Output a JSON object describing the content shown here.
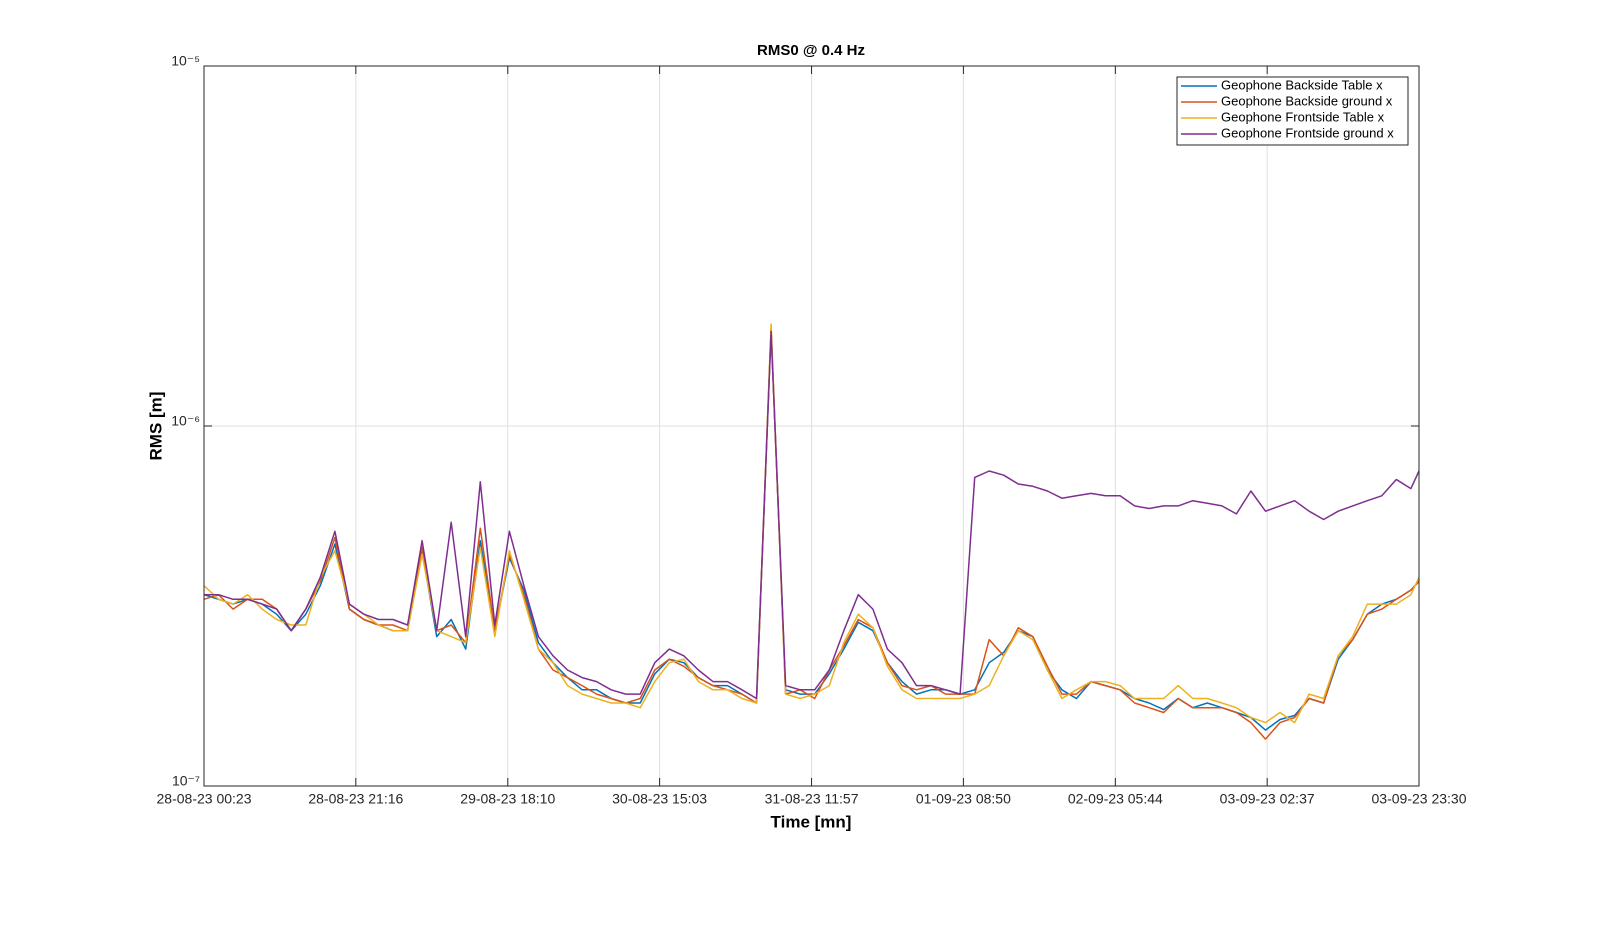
{
  "chart_data": {
    "type": "line",
    "title": "RMS0 @ 0.4 Hz",
    "xlabel": "Time [mn]",
    "ylabel": "RMS [m]",
    "yscale": "log",
    "grid": true,
    "legend": "upper right",
    "x": [
      "2023-08-28T00:23",
      "2023-08-28T02:23",
      "2023-08-28T04:23",
      "2023-08-28T06:23",
      "2023-08-28T08:23",
      "2023-08-28T10:23",
      "2023-08-28T12:23",
      "2023-08-28T14:23",
      "2023-08-28T16:23",
      "2023-08-28T18:23",
      "2023-08-28T20:23",
      "2023-08-28T22:23",
      "2023-08-29T00:23",
      "2023-08-29T02:23",
      "2023-08-29T04:23",
      "2023-08-29T06:23",
      "2023-08-29T08:23",
      "2023-08-29T10:23",
      "2023-08-29T12:23",
      "2023-08-29T14:23",
      "2023-08-29T16:23",
      "2023-08-29T18:23",
      "2023-08-29T20:23",
      "2023-08-29T22:23",
      "2023-08-30T00:23",
      "2023-08-30T02:23",
      "2023-08-30T04:23",
      "2023-08-30T06:23",
      "2023-08-30T08:23",
      "2023-08-30T10:23",
      "2023-08-30T12:23",
      "2023-08-30T14:23",
      "2023-08-30T16:23",
      "2023-08-30T18:23",
      "2023-08-30T20:23",
      "2023-08-30T22:23",
      "2023-08-31T00:23",
      "2023-08-31T02:23",
      "2023-08-31T04:23",
      "2023-08-31T06:23",
      "2023-08-31T08:23",
      "2023-08-31T10:23",
      "2023-08-31T12:23",
      "2023-08-31T14:23",
      "2023-08-31T16:23",
      "2023-08-31T18:23",
      "2023-08-31T20:23",
      "2023-08-31T22:23",
      "2023-09-01T00:23",
      "2023-09-01T02:23",
      "2023-09-01T04:23",
      "2023-09-01T06:23",
      "2023-09-01T08:23",
      "2023-09-01T10:23",
      "2023-09-01T12:23",
      "2023-09-01T14:23",
      "2023-09-01T16:23",
      "2023-09-01T18:23",
      "2023-09-01T20:23",
      "2023-09-01T22:23",
      "2023-09-02T00:23",
      "2023-09-02T02:23",
      "2023-09-02T04:23",
      "2023-09-02T06:23",
      "2023-09-02T08:23",
      "2023-09-02T10:23",
      "2023-09-02T12:23",
      "2023-09-02T14:23",
      "2023-09-02T16:23",
      "2023-09-02T18:23",
      "2023-09-02T20:23",
      "2023-09-02T22:23",
      "2023-09-03T00:23",
      "2023-09-03T02:23",
      "2023-09-03T04:23",
      "2023-09-03T06:23",
      "2023-09-03T08:23",
      "2023-09-03T10:23",
      "2023-09-03T12:23",
      "2023-09-03T14:23",
      "2023-09-03T16:23",
      "2023-09-03T18:23",
      "2023-09-03T20:23",
      "2023-09-03T22:23",
      "2023-09-03T23:30"
    ],
    "xlim": [
      "2023-08-28T00:23",
      "2023-09-03T23:30"
    ],
    "xticks": [
      {
        "value": "2023-08-28T00:23",
        "label": "28-08-23 00:23"
      },
      {
        "value": "2023-08-28T21:16",
        "label": "28-08-23 21:16"
      },
      {
        "value": "2023-08-29T18:10",
        "label": "29-08-23 18:10"
      },
      {
        "value": "2023-08-30T15:03",
        "label": "30-08-23 15:03"
      },
      {
        "value": "2023-08-31T11:57",
        "label": "31-08-23 11:57"
      },
      {
        "value": "2023-09-01T08:50",
        "label": "01-09-23 08:50"
      },
      {
        "value": "2023-09-02T05:44",
        "label": "02-09-23 05:44"
      },
      {
        "value": "2023-09-03T02:37",
        "label": "03-09-23 02:37"
      },
      {
        "value": "2023-09-03T23:30",
        "label": "03-09-23 23:30"
      }
    ],
    "ylim": [
      1e-07,
      1e-05
    ],
    "yticks": [
      {
        "value": 1e-07,
        "label": "10⁻⁷"
      },
      {
        "value": 1e-06,
        "label": "10⁻⁶"
      },
      {
        "value": 1e-05,
        "label": "10⁻⁵"
      }
    ],
    "series": [
      {
        "name": "Geophone Backside Table x",
        "color": "#0072bd",
        "values": [
          3.4e-07,
          3.3e-07,
          3.2e-07,
          3.3e-07,
          3.2e-07,
          3e-07,
          2.7e-07,
          3e-07,
          3.6e-07,
          4.7e-07,
          3.1e-07,
          2.9e-07,
          2.8e-07,
          2.7e-07,
          2.7e-07,
          4.5e-07,
          2.6e-07,
          2.9e-07,
          2.4e-07,
          4.8e-07,
          2.7e-07,
          4.3e-07,
          3.5e-07,
          2.5e-07,
          2.2e-07,
          2e-07,
          1.85e-07,
          1.85e-07,
          1.75e-07,
          1.7e-07,
          1.7e-07,
          2.05e-07,
          2.25e-07,
          2.2e-07,
          2e-07,
          1.9e-07,
          1.9e-07,
          1.8e-07,
          1.7e-07,
          1.85e-06,
          1.85e-07,
          1.8e-07,
          1.8e-07,
          2.05e-07,
          2.4e-07,
          2.85e-07,
          2.7e-07,
          2.2e-07,
          1.95e-07,
          1.8e-07,
          1.85e-07,
          1.85e-07,
          1.8e-07,
          1.85e-07,
          2.2e-07,
          2.35e-07,
          2.7e-07,
          2.6e-07,
          2.1e-07,
          1.85e-07,
          1.75e-07,
          1.95e-07,
          1.9e-07,
          1.85e-07,
          1.75e-07,
          1.7e-07,
          1.63e-07,
          1.75e-07,
          1.65e-07,
          1.7e-07,
          1.65e-07,
          1.6e-07,
          1.55e-07,
          1.43e-07,
          1.53e-07,
          1.57e-07,
          1.75e-07,
          1.7e-07,
          2.25e-07,
          2.55e-07,
          3e-07,
          3.2e-07,
          3.3e-07,
          3.5e-07,
          3.7e-07
        ]
      },
      {
        "name": "Geophone Backside ground x",
        "color": "#d95319",
        "values": [
          3.3e-07,
          3.4e-07,
          3.1e-07,
          3.3e-07,
          3.3e-07,
          3.1e-07,
          2.7e-07,
          3.1e-07,
          3.7e-07,
          4.9e-07,
          3.1e-07,
          2.9e-07,
          2.8e-07,
          2.8e-07,
          2.7e-07,
          4.6e-07,
          2.7e-07,
          2.8e-07,
          2.5e-07,
          5.2e-07,
          2.7e-07,
          4.4e-07,
          3.4e-07,
          2.4e-07,
          2.1e-07,
          2e-07,
          1.9e-07,
          1.8e-07,
          1.75e-07,
          1.7e-07,
          1.75e-07,
          2.1e-07,
          2.25e-07,
          2.15e-07,
          2e-07,
          1.9e-07,
          1.85e-07,
          1.8e-07,
          1.7e-07,
          1.86e-06,
          1.8e-07,
          1.85e-07,
          1.75e-07,
          2.1e-07,
          2.45e-07,
          2.9e-07,
          2.75e-07,
          2.2e-07,
          1.9e-07,
          1.85e-07,
          1.9e-07,
          1.8e-07,
          1.8e-07,
          1.8e-07,
          2.55e-07,
          2.3e-07,
          2.75e-07,
          2.6e-07,
          2.15e-07,
          1.8e-07,
          1.8e-07,
          1.95e-07,
          1.9e-07,
          1.85e-07,
          1.7e-07,
          1.65e-07,
          1.6e-07,
          1.75e-07,
          1.65e-07,
          1.65e-07,
          1.65e-07,
          1.6e-07,
          1.5e-07,
          1.35e-07,
          1.5e-07,
          1.55e-07,
          1.75e-07,
          1.7e-07,
          2.3e-07,
          2.55e-07,
          3e-07,
          3.1e-07,
          3.3e-07,
          3.5e-07,
          3.7e-07
        ]
      },
      {
        "name": "Geophone Frontside Table x",
        "color": "#edb120",
        "values": [
          3.6e-07,
          3.3e-07,
          3.2e-07,
          3.4e-07,
          3.1e-07,
          2.9e-07,
          2.8e-07,
          2.8e-07,
          3.8e-07,
          4.5e-07,
          3.2e-07,
          3e-07,
          2.8e-07,
          2.7e-07,
          2.7e-07,
          4.4e-07,
          2.7e-07,
          2.6e-07,
          2.5e-07,
          4.6e-07,
          2.6e-07,
          4.5e-07,
          3.3e-07,
          2.4e-07,
          2.2e-07,
          1.9e-07,
          1.8e-07,
          1.75e-07,
          1.7e-07,
          1.7e-07,
          1.65e-07,
          1.95e-07,
          2.2e-07,
          2.25e-07,
          1.95e-07,
          1.85e-07,
          1.85e-07,
          1.75e-07,
          1.7e-07,
          1.92e-06,
          1.8e-07,
          1.75e-07,
          1.8e-07,
          1.9e-07,
          2.5e-07,
          3e-07,
          2.75e-07,
          2.15e-07,
          1.85e-07,
          1.75e-07,
          1.75e-07,
          1.75e-07,
          1.75e-07,
          1.8e-07,
          1.9e-07,
          2.3e-07,
          2.7e-07,
          2.55e-07,
          2.1e-07,
          1.75e-07,
          1.85e-07,
          1.95e-07,
          1.95e-07,
          1.9e-07,
          1.75e-07,
          1.75e-07,
          1.75e-07,
          1.9e-07,
          1.75e-07,
          1.75e-07,
          1.7e-07,
          1.65e-07,
          1.55e-07,
          1.5e-07,
          1.6e-07,
          1.5e-07,
          1.8e-07,
          1.75e-07,
          2.3e-07,
          2.6e-07,
          3.2e-07,
          3.2e-07,
          3.2e-07,
          3.4e-07,
          3.8e-07
        ]
      },
      {
        "name": "Geophone Frontside ground x",
        "color": "#7e2f8e",
        "values": [
          3.4e-07,
          3.4e-07,
          3.3e-07,
          3.3e-07,
          3.2e-07,
          3.1e-07,
          2.7e-07,
          3.1e-07,
          3.8e-07,
          5.1e-07,
          3.2e-07,
          3e-07,
          2.9e-07,
          2.9e-07,
          2.8e-07,
          4.8e-07,
          2.7e-07,
          5.4e-07,
          2.6e-07,
          7e-07,
          2.8e-07,
          5.1e-07,
          3.6e-07,
          2.6e-07,
          2.3e-07,
          2.1e-07,
          2e-07,
          1.95e-07,
          1.85e-07,
          1.8e-07,
          1.8e-07,
          2.2e-07,
          2.4e-07,
          2.3e-07,
          2.1e-07,
          1.95e-07,
          1.95e-07,
          1.85e-07,
          1.75e-07,
          1.83e-06,
          1.9e-07,
          1.85e-07,
          1.85e-07,
          2.1e-07,
          2.7e-07,
          3.4e-07,
          3.1e-07,
          2.4e-07,
          2.2e-07,
          1.9e-07,
          1.9e-07,
          1.85e-07,
          1.8e-07,
          7.2e-07,
          7.5e-07,
          7.3e-07,
          6.9e-07,
          6.8e-07,
          6.6e-07,
          6.3e-07,
          6.4e-07,
          6.5e-07,
          6.4e-07,
          6.4e-07,
          6e-07,
          5.9e-07,
          6e-07,
          6e-07,
          6.2e-07,
          6.1e-07,
          6e-07,
          5.7e-07,
          6.6e-07,
          5.8e-07,
          6e-07,
          6.2e-07,
          5.8e-07,
          5.5e-07,
          5.8e-07,
          6e-07,
          6.2e-07,
          6.4e-07,
          7.1e-07,
          6.7e-07,
          7.5e-07
        ]
      }
    ]
  }
}
